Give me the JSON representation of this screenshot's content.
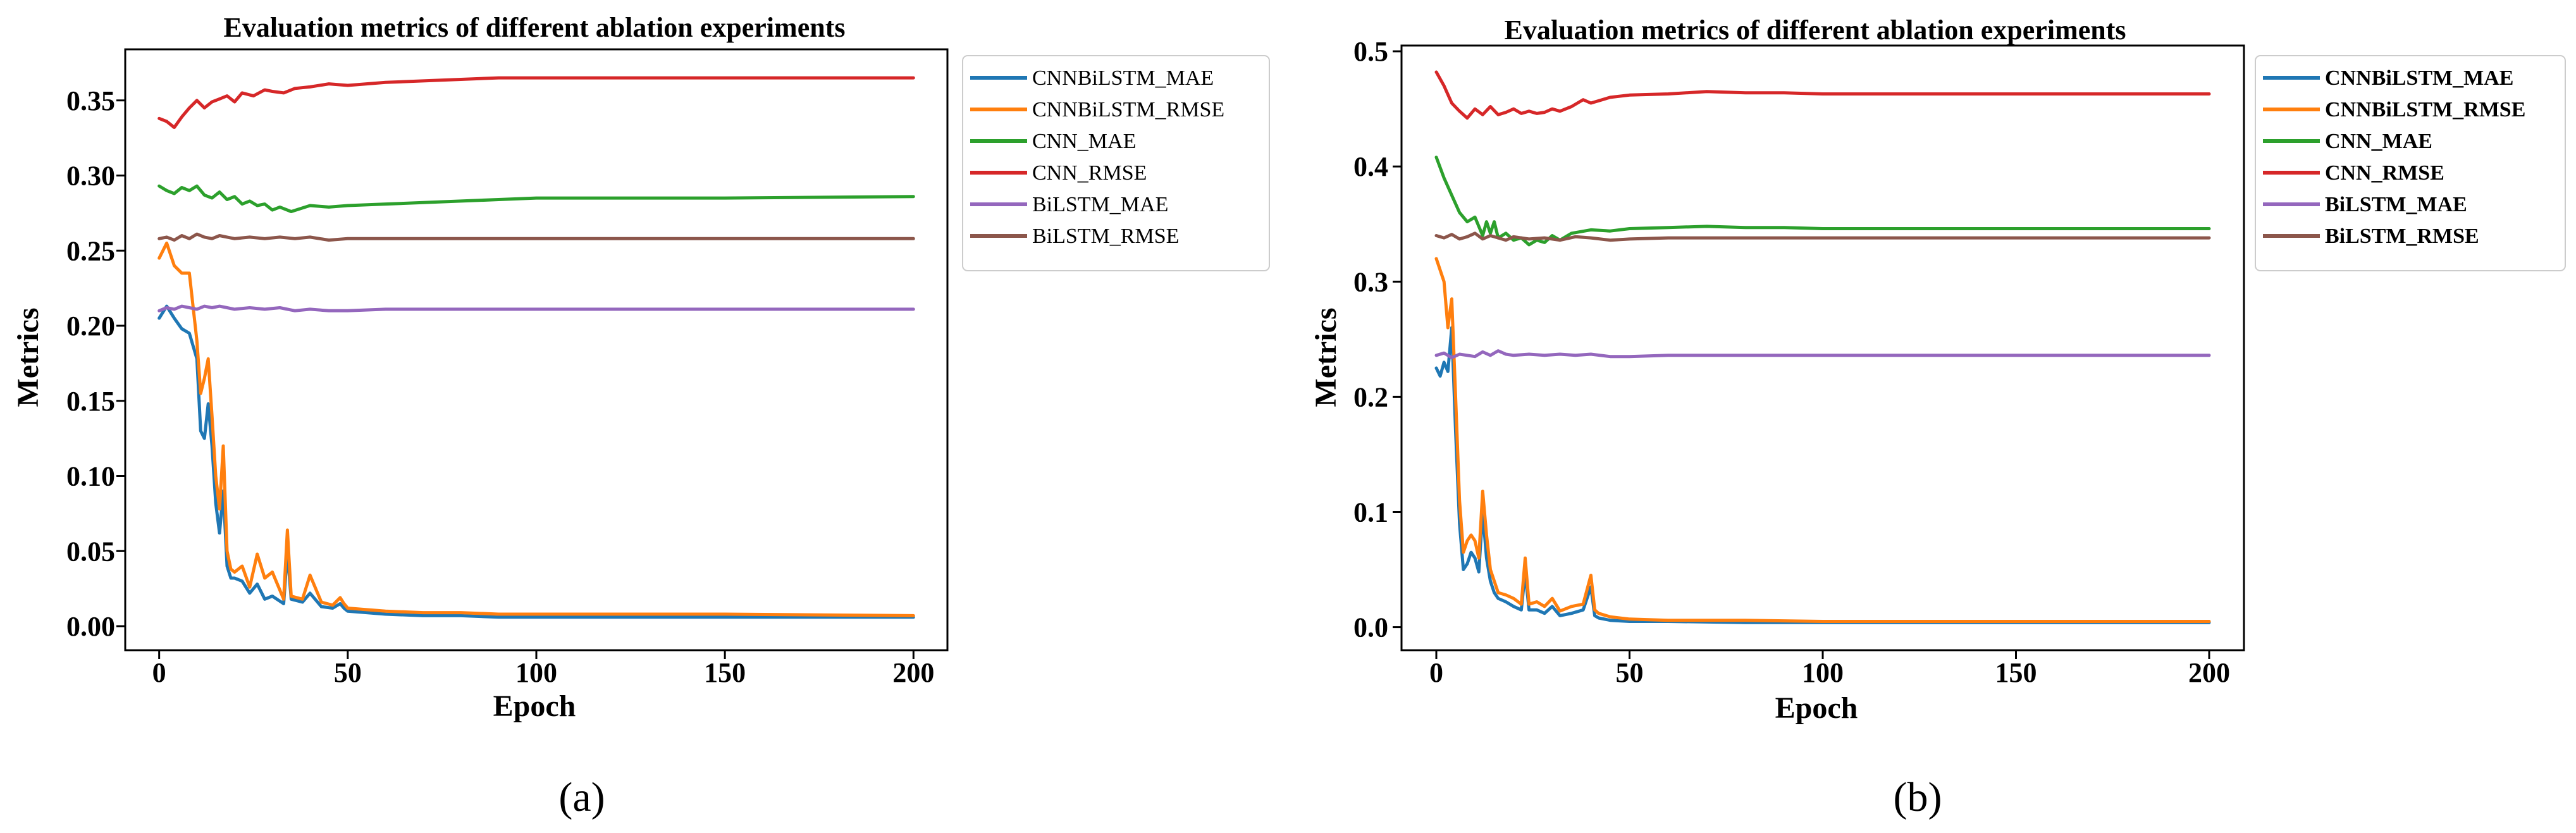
{
  "figure": {
    "captions": [
      "(a)",
      "(b)"
    ]
  },
  "chart_data": [
    {
      "type": "line",
      "title": "Evaluation metrics of different ablation experiments",
      "xlabel": "Epoch",
      "ylabel": "Metrics",
      "xlim": [
        -9,
        209
      ],
      "ylim": [
        -0.016,
        0.384
      ],
      "xticks": [
        0,
        50,
        100,
        150,
        200
      ],
      "xtick_labels": [
        "0",
        "50",
        "100",
        "150",
        "200"
      ],
      "yticks": [
        0.0,
        0.05,
        0.1,
        0.15,
        0.2,
        0.25,
        0.3,
        0.35
      ],
      "ytick_labels": [
        "0.00",
        "0.05",
        "0.10",
        "0.15",
        "0.20",
        "0.25",
        "0.30",
        "0.35"
      ],
      "legend_position": "outside-right",
      "series": [
        {
          "name": "CNNBiLSTM_MAE",
          "color": "#1f77b4",
          "x": [
            0,
            2,
            4,
            6,
            8,
            10,
            11,
            12,
            13,
            14,
            15,
            16,
            17,
            18,
            19,
            20,
            22,
            24,
            26,
            28,
            30,
            33,
            34,
            35,
            38,
            40,
            43,
            46,
            48,
            49,
            50,
            55,
            60,
            70,
            80,
            90,
            100,
            120,
            150,
            200
          ],
          "y": [
            0.205,
            0.213,
            0.205,
            0.198,
            0.195,
            0.178,
            0.13,
            0.125,
            0.148,
            0.12,
            0.082,
            0.062,
            0.09,
            0.04,
            0.032,
            0.032,
            0.03,
            0.022,
            0.028,
            0.018,
            0.02,
            0.015,
            0.05,
            0.018,
            0.016,
            0.022,
            0.013,
            0.012,
            0.015,
            0.012,
            0.01,
            0.009,
            0.008,
            0.007,
            0.007,
            0.006,
            0.006,
            0.006,
            0.006,
            0.006
          ]
        },
        {
          "name": "CNNBiLSTM_RMSE",
          "color": "#ff7f0e",
          "x": [
            0,
            2,
            4,
            6,
            8,
            10,
            11,
            12,
            13,
            14,
            15,
            16,
            17,
            18,
            19,
            20,
            22,
            24,
            26,
            28,
            30,
            33,
            34,
            35,
            38,
            40,
            43,
            46,
            48,
            49,
            50,
            55,
            60,
            70,
            80,
            90,
            100,
            120,
            150,
            200
          ],
          "y": [
            0.245,
            0.255,
            0.24,
            0.235,
            0.235,
            0.19,
            0.155,
            0.165,
            0.178,
            0.14,
            0.1,
            0.078,
            0.12,
            0.05,
            0.038,
            0.036,
            0.04,
            0.026,
            0.048,
            0.032,
            0.036,
            0.018,
            0.064,
            0.02,
            0.018,
            0.034,
            0.016,
            0.014,
            0.019,
            0.015,
            0.012,
            0.011,
            0.01,
            0.009,
            0.009,
            0.008,
            0.008,
            0.008,
            0.008,
            0.007
          ]
        },
        {
          "name": "CNN_MAE",
          "color": "#2ca02c",
          "x": [
            0,
            2,
            4,
            6,
            8,
            10,
            12,
            14,
            16,
            18,
            20,
            22,
            24,
            26,
            28,
            30,
            32,
            35,
            40,
            45,
            50,
            60,
            70,
            80,
            90,
            100,
            120,
            150,
            200
          ],
          "y": [
            0.293,
            0.29,
            0.288,
            0.292,
            0.29,
            0.293,
            0.287,
            0.285,
            0.289,
            0.284,
            0.286,
            0.281,
            0.283,
            0.28,
            0.281,
            0.277,
            0.279,
            0.276,
            0.28,
            0.279,
            0.28,
            0.281,
            0.282,
            0.283,
            0.284,
            0.285,
            0.285,
            0.285,
            0.286
          ]
        },
        {
          "name": "CNN_RMSE",
          "color": "#d62728",
          "x": [
            0,
            2,
            4,
            6,
            8,
            10,
            12,
            14,
            16,
            18,
            20,
            22,
            25,
            28,
            30,
            33,
            36,
            40,
            45,
            50,
            55,
            60,
            70,
            80,
            90,
            100,
            120,
            150,
            200
          ],
          "y": [
            0.338,
            0.336,
            0.332,
            0.339,
            0.345,
            0.35,
            0.345,
            0.349,
            0.351,
            0.353,
            0.349,
            0.355,
            0.353,
            0.357,
            0.356,
            0.355,
            0.358,
            0.359,
            0.361,
            0.36,
            0.361,
            0.362,
            0.363,
            0.364,
            0.365,
            0.365,
            0.365,
            0.365,
            0.365
          ]
        },
        {
          "name": "BiLSTM_MAE",
          "color": "#9467bd",
          "x": [
            0,
            2,
            4,
            6,
            8,
            10,
            12,
            14,
            16,
            18,
            20,
            24,
            28,
            32,
            36,
            40,
            45,
            50,
            60,
            80,
            100,
            150,
            200
          ],
          "y": [
            0.21,
            0.212,
            0.211,
            0.213,
            0.212,
            0.211,
            0.213,
            0.212,
            0.213,
            0.212,
            0.211,
            0.212,
            0.211,
            0.212,
            0.21,
            0.211,
            0.21,
            0.21,
            0.211,
            0.211,
            0.211,
            0.211,
            0.211
          ]
        },
        {
          "name": "BiLSTM_RMSE",
          "color": "#8c564b",
          "x": [
            0,
            2,
            4,
            6,
            8,
            10,
            12,
            14,
            16,
            18,
            20,
            24,
            28,
            32,
            36,
            40,
            45,
            50,
            60,
            80,
            100,
            150,
            200
          ],
          "y": [
            0.258,
            0.259,
            0.257,
            0.26,
            0.258,
            0.261,
            0.259,
            0.258,
            0.26,
            0.259,
            0.258,
            0.259,
            0.258,
            0.259,
            0.258,
            0.259,
            0.257,
            0.258,
            0.258,
            0.258,
            0.258,
            0.258,
            0.258
          ]
        }
      ]
    },
    {
      "type": "line",
      "title": "Evaluation metrics of different ablation experiments",
      "xlabel": "Epoch",
      "ylabel": "Metrics",
      "xlim": [
        -9,
        209
      ],
      "ylim": [
        -0.02,
        0.505
      ],
      "xticks": [
        0,
        50,
        100,
        150,
        200
      ],
      "xtick_labels": [
        "0",
        "50",
        "100",
        "150",
        "200"
      ],
      "yticks": [
        0.0,
        0.1,
        0.2,
        0.3,
        0.4,
        0.5
      ],
      "ytick_labels": [
        "0.0",
        "0.1",
        "0.2",
        "0.3",
        "0.4",
        "0.5"
      ],
      "legend_position": "outside-right",
      "series": [
        {
          "name": "CNNBiLSTM_MAE",
          "color": "#1f77b4",
          "x": [
            0,
            1,
            2,
            3,
            4,
            5,
            6,
            7,
            8,
            9,
            10,
            11,
            12,
            13,
            14,
            15,
            16,
            18,
            20,
            22,
            23,
            24,
            26,
            28,
            30,
            32,
            35,
            38,
            40,
            41,
            42,
            45,
            50,
            60,
            80,
            100,
            150,
            200
          ],
          "y": [
            0.225,
            0.218,
            0.23,
            0.222,
            0.26,
            0.17,
            0.09,
            0.05,
            0.055,
            0.065,
            0.06,
            0.048,
            0.1,
            0.06,
            0.04,
            0.03,
            0.025,
            0.022,
            0.018,
            0.015,
            0.048,
            0.015,
            0.015,
            0.012,
            0.018,
            0.01,
            0.012,
            0.015,
            0.035,
            0.01,
            0.008,
            0.006,
            0.005,
            0.005,
            0.004,
            0.004,
            0.004,
            0.004
          ]
        },
        {
          "name": "CNNBiLSTM_RMSE",
          "color": "#ff7f0e",
          "x": [
            0,
            1,
            2,
            3,
            4,
            5,
            6,
            7,
            8,
            9,
            10,
            11,
            12,
            13,
            14,
            15,
            16,
            18,
            20,
            22,
            23,
            24,
            26,
            28,
            30,
            32,
            35,
            38,
            40,
            41,
            42,
            45,
            50,
            60,
            80,
            100,
            150,
            200
          ],
          "y": [
            0.32,
            0.31,
            0.3,
            0.26,
            0.285,
            0.2,
            0.11,
            0.065,
            0.075,
            0.08,
            0.075,
            0.06,
            0.118,
            0.08,
            0.05,
            0.04,
            0.03,
            0.028,
            0.025,
            0.02,
            0.06,
            0.02,
            0.022,
            0.018,
            0.025,
            0.014,
            0.018,
            0.02,
            0.045,
            0.015,
            0.012,
            0.009,
            0.007,
            0.006,
            0.006,
            0.005,
            0.005,
            0.005
          ]
        },
        {
          "name": "CNN_MAE",
          "color": "#2ca02c",
          "x": [
            0,
            2,
            4,
            6,
            8,
            10,
            12,
            13,
            14,
            15,
            16,
            18,
            20,
            22,
            24,
            26,
            28,
            30,
            32,
            35,
            40,
            45,
            50,
            60,
            70,
            80,
            90,
            100,
            120,
            150,
            200
          ],
          "y": [
            0.408,
            0.39,
            0.375,
            0.36,
            0.352,
            0.356,
            0.34,
            0.352,
            0.342,
            0.352,
            0.338,
            0.342,
            0.336,
            0.338,
            0.332,
            0.336,
            0.334,
            0.34,
            0.336,
            0.342,
            0.345,
            0.344,
            0.346,
            0.347,
            0.348,
            0.347,
            0.347,
            0.346,
            0.346,
            0.346,
            0.346
          ]
        },
        {
          "name": "CNN_RMSE",
          "color": "#d62728",
          "x": [
            0,
            2,
            4,
            6,
            8,
            10,
            12,
            14,
            16,
            18,
            20,
            22,
            24,
            26,
            28,
            30,
            32,
            35,
            38,
            40,
            45,
            50,
            60,
            70,
            80,
            90,
            100,
            120,
            150,
            200
          ],
          "y": [
            0.482,
            0.47,
            0.455,
            0.448,
            0.442,
            0.45,
            0.445,
            0.452,
            0.445,
            0.447,
            0.45,
            0.446,
            0.448,
            0.446,
            0.447,
            0.45,
            0.448,
            0.452,
            0.458,
            0.455,
            0.46,
            0.462,
            0.463,
            0.465,
            0.464,
            0.464,
            0.463,
            0.463,
            0.463,
            0.463
          ]
        },
        {
          "name": "BiLSTM_MAE",
          "color": "#9467bd",
          "x": [
            0,
            2,
            4,
            6,
            8,
            10,
            12,
            14,
            16,
            18,
            20,
            24,
            28,
            32,
            36,
            40,
            45,
            50,
            60,
            80,
            100,
            150,
            200
          ],
          "y": [
            0.236,
            0.238,
            0.234,
            0.237,
            0.236,
            0.235,
            0.239,
            0.236,
            0.24,
            0.237,
            0.236,
            0.237,
            0.236,
            0.237,
            0.236,
            0.237,
            0.235,
            0.235,
            0.236,
            0.236,
            0.236,
            0.236,
            0.236
          ]
        },
        {
          "name": "BiLSTM_RMSE",
          "color": "#8c564b",
          "x": [
            0,
            2,
            4,
            6,
            8,
            10,
            12,
            14,
            16,
            18,
            20,
            24,
            28,
            32,
            36,
            40,
            45,
            50,
            60,
            80,
            100,
            150,
            200
          ],
          "y": [
            0.34,
            0.338,
            0.341,
            0.337,
            0.339,
            0.342,
            0.337,
            0.34,
            0.338,
            0.336,
            0.339,
            0.337,
            0.338,
            0.336,
            0.339,
            0.338,
            0.336,
            0.337,
            0.338,
            0.338,
            0.338,
            0.338,
            0.338
          ]
        }
      ]
    }
  ]
}
